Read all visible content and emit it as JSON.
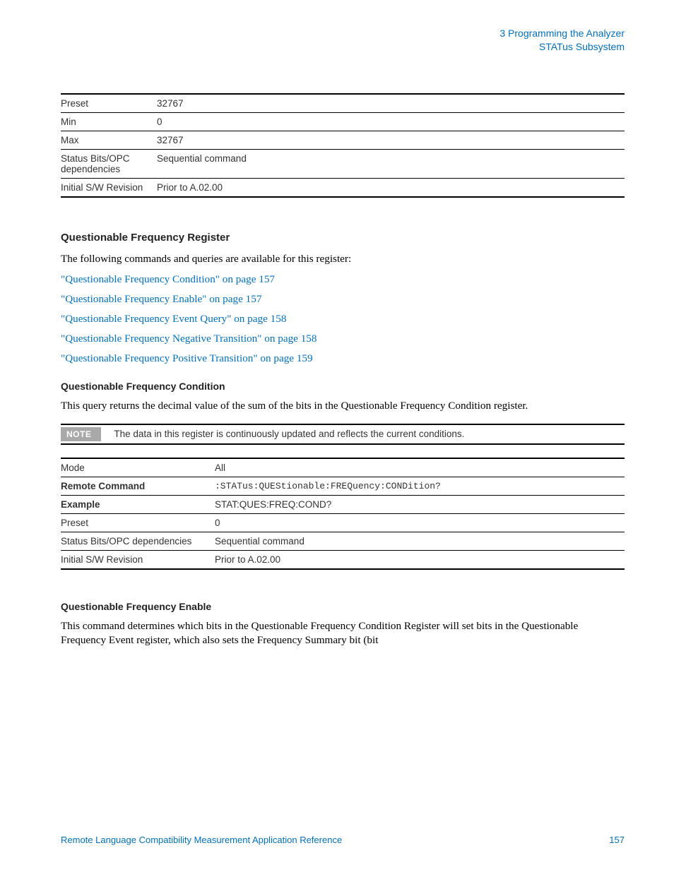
{
  "header": {
    "chapter": "3",
    "chapter_title": "Programming the Analyzer",
    "subsection": "STATus Subsystem"
  },
  "table1": {
    "rows": [
      {
        "label": "Preset",
        "value": "32767",
        "bold": false
      },
      {
        "label": "Min",
        "value": "0",
        "bold": false
      },
      {
        "label": "Max",
        "value": "32767",
        "bold": false
      },
      {
        "label": "Status Bits/OPC dependencies",
        "value": "Sequential command",
        "bold": false
      },
      {
        "label": "Initial S/W Revision",
        "value": "Prior to A.02.00",
        "bold": false
      }
    ]
  },
  "register": {
    "heading": "Questionable Frequency Register",
    "intro": "The following commands and queries are available for this register:",
    "links": [
      "\"Questionable Frequency Condition\" on page 157",
      "\"Questionable Frequency Enable\" on page 157",
      "\"Questionable Frequency Event Query\" on page 158",
      "\"Questionable Frequency Negative Transition\" on page 158",
      "\"Questionable Frequency Positive Transition\" on page 159"
    ]
  },
  "condition": {
    "heading": "Questionable Frequency Condition",
    "text": "This query returns the decimal value of the sum of the bits in the Questionable Frequency Condition register.",
    "note_badge": "NOTE",
    "note_text": "The data in this register is continuously updated and reflects the current conditions.",
    "table": {
      "rows": [
        {
          "label": "Mode",
          "value": "All",
          "bold": false,
          "mono": false
        },
        {
          "label": "Remote Command",
          "value": ":STATus:QUEStionable:FREQuency:CONDition?",
          "bold": true,
          "mono": true
        },
        {
          "label": "Example",
          "value": "STAT:QUES:FREQ:COND?",
          "bold": true,
          "mono": false
        },
        {
          "label": "Preset",
          "value": "0",
          "bold": false,
          "mono": false
        },
        {
          "label": "Status Bits/OPC dependencies",
          "value": "Sequential command",
          "bold": false,
          "mono": false
        },
        {
          "label": "Initial S/W Revision",
          "value": "Prior to A.02.00",
          "bold": false,
          "mono": false
        }
      ]
    }
  },
  "enable": {
    "heading": "Questionable Frequency Enable",
    "text": "This command determines which bits in the Questionable Frequency Condition Register will set bits in the Questionable Frequency Event register, which also sets the Frequency Summary bit (bit"
  },
  "footer": {
    "title": "Remote Language Compatibility Measurement Application Reference",
    "page": "157"
  },
  "colors": {
    "link": "#0070c0",
    "text": "#000000",
    "table_text": "#333333",
    "note_bg": "#a9a9a9",
    "background": "#ffffff"
  },
  "fonts": {
    "body_serif": "Georgia",
    "ui_sans": "Arial",
    "mono": "Courier New"
  }
}
